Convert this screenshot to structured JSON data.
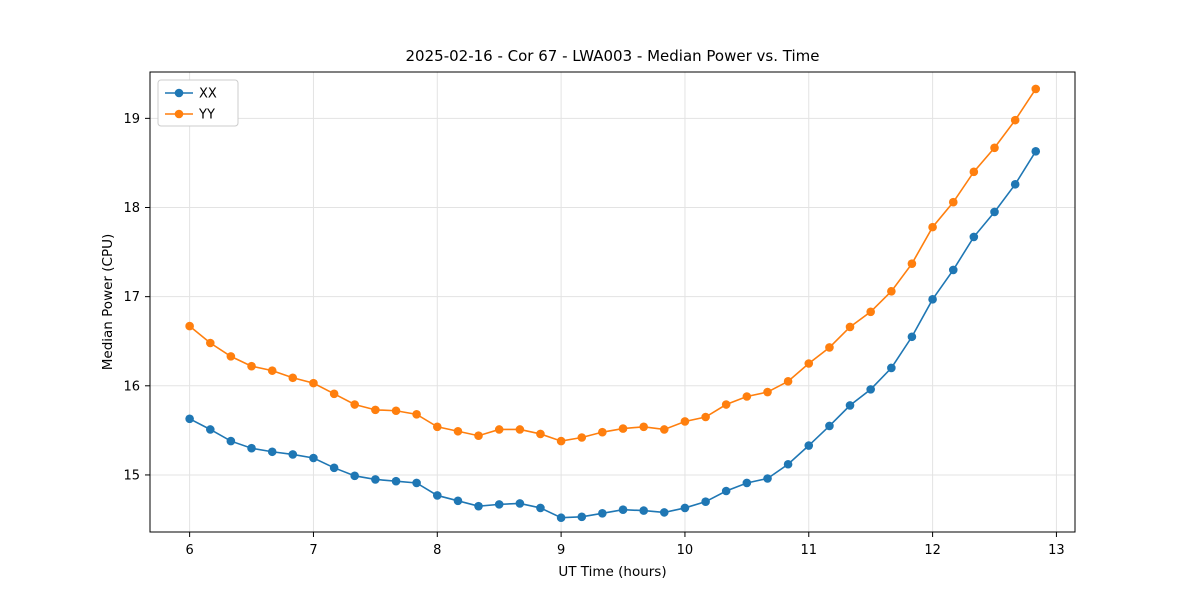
{
  "chart_data": {
    "type": "line",
    "title": "2025-02-16 - Cor 67 - LWA003 - Median Power vs. Time",
    "xlabel": "UT Time (hours)",
    "ylabel": "Median Power (CPU)",
    "xlim": [
      5.68,
      13.15
    ],
    "ylim": [
      14.36,
      19.52
    ],
    "xticks": [
      6,
      7,
      8,
      9,
      10,
      11,
      12,
      13
    ],
    "yticks": [
      15,
      16,
      17,
      18,
      19
    ],
    "grid": true,
    "legend_position": "upper left",
    "x": [
      6.0,
      6.167,
      6.333,
      6.5,
      6.667,
      6.833,
      7.0,
      7.167,
      7.333,
      7.5,
      7.667,
      7.833,
      8.0,
      8.167,
      8.333,
      8.5,
      8.667,
      8.833,
      9.0,
      9.167,
      9.333,
      9.5,
      9.667,
      9.833,
      10.0,
      10.167,
      10.333,
      10.5,
      10.667,
      10.833,
      11.0,
      11.167,
      11.333,
      11.5,
      11.667,
      11.833,
      12.0,
      12.167,
      12.333,
      12.5,
      12.667,
      12.833
    ],
    "series": [
      {
        "name": "XX",
        "color": "#1f77b4",
        "values": [
          15.63,
          15.51,
          15.38,
          15.3,
          15.26,
          15.23,
          15.19,
          15.08,
          14.99,
          14.95,
          14.93,
          14.91,
          14.77,
          14.71,
          14.65,
          14.67,
          14.68,
          14.63,
          14.52,
          14.53,
          14.57,
          14.61,
          14.6,
          14.58,
          14.63,
          14.7,
          14.82,
          14.91,
          14.96,
          15.12,
          15.33,
          15.55,
          15.78,
          15.96,
          16.2,
          16.55,
          16.97,
          17.3,
          17.67,
          17.95,
          18.26,
          18.63
        ]
      },
      {
        "name": "YY",
        "color": "#ff7f0e",
        "values": [
          16.67,
          16.48,
          16.33,
          16.22,
          16.17,
          16.09,
          16.03,
          15.91,
          15.79,
          15.73,
          15.72,
          15.68,
          15.54,
          15.49,
          15.44,
          15.51,
          15.51,
          15.46,
          15.38,
          15.42,
          15.48,
          15.52,
          15.54,
          15.51,
          15.6,
          15.65,
          15.79,
          15.88,
          15.93,
          16.05,
          16.25,
          16.43,
          16.66,
          16.83,
          17.06,
          17.37,
          17.78,
          18.06,
          18.4,
          18.67,
          18.98,
          19.33
        ]
      }
    ],
    "styles": {
      "grid_color": "#e3e3e3",
      "frame_color": "#000000",
      "legend_border": "#cccccc",
      "marker_radius": 4.3,
      "line_width": 1.6
    }
  }
}
